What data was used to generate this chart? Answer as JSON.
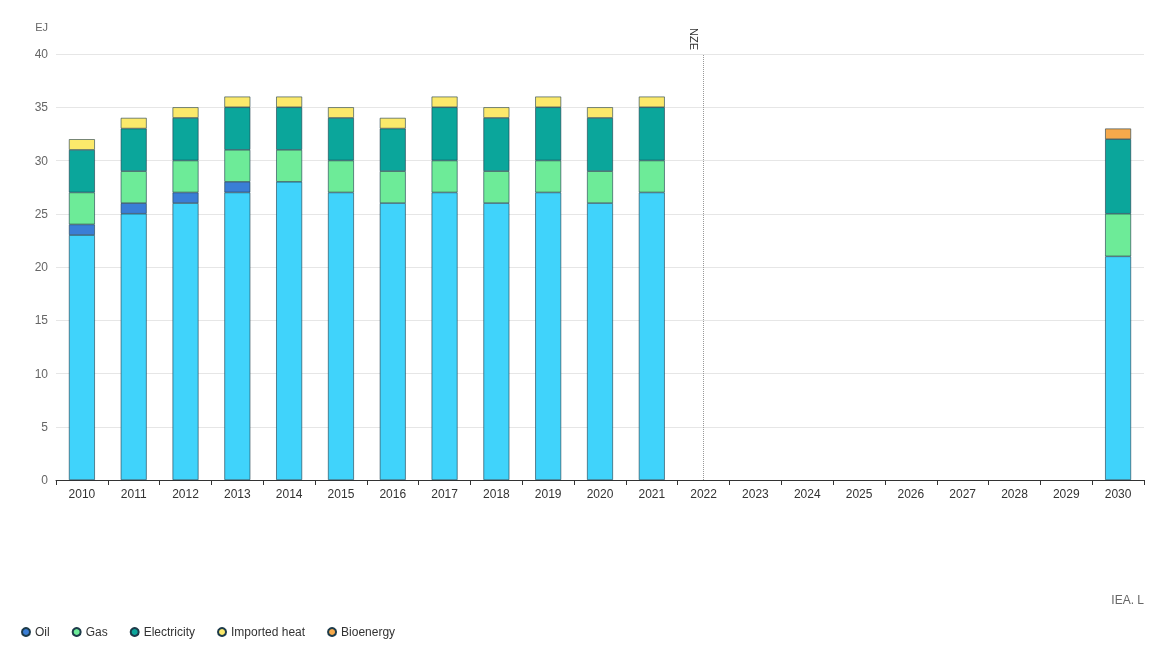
{
  "chart_data": {
    "type": "bar",
    "stacked": true,
    "ylabel": "EJ",
    "categories": [
      "2010",
      "2011",
      "2012",
      "2013",
      "2014",
      "2015",
      "2016",
      "2017",
      "2018",
      "2019",
      "2020",
      "2021",
      "2022",
      "2023",
      "2024",
      "2025",
      "2026",
      "2027",
      "2028",
      "2029",
      "2030"
    ],
    "series": [
      {
        "color": "#40d3fb",
        "values": [
          23,
          25,
          26,
          27,
          28,
          27,
          26,
          27,
          26,
          27,
          26,
          27,
          null,
          null,
          null,
          null,
          null,
          null,
          null,
          null,
          21
        ]
      },
      {
        "name": "Oil",
        "color": "#3a7ed6",
        "values": [
          1,
          1,
          1,
          1,
          null,
          null,
          null,
          null,
          null,
          null,
          null,
          null,
          null,
          null,
          null,
          null,
          null,
          null,
          null,
          null,
          null
        ]
      },
      {
        "name": "Gas",
        "color": "#6deb98",
        "values": [
          3,
          3,
          3,
          3,
          3,
          3,
          3,
          3,
          3,
          3,
          3,
          3,
          null,
          null,
          null,
          null,
          null,
          null,
          null,
          null,
          4
        ]
      },
      {
        "name": "Electricity",
        "color": "#0ba69b",
        "values": [
          4,
          4,
          4,
          4,
          4,
          4,
          4,
          5,
          5,
          5,
          5,
          5,
          null,
          null,
          null,
          null,
          null,
          null,
          null,
          null,
          7
        ]
      },
      {
        "name": "Imported heat",
        "color": "#fbe96b",
        "values": [
          1,
          1,
          1,
          1,
          1,
          1,
          1,
          1,
          1,
          1,
          1,
          1,
          null,
          null,
          null,
          null,
          null,
          null,
          null,
          null,
          null
        ]
      },
      {
        "name": "Bioenergy",
        "color": "#f6a94b",
        "values": [
          null,
          null,
          null,
          null,
          null,
          null,
          null,
          null,
          null,
          null,
          null,
          null,
          null,
          null,
          null,
          null,
          null,
          null,
          null,
          null,
          1
        ]
      }
    ],
    "ylim": [
      0,
      40
    ],
    "yticks": [
      0,
      5,
      10,
      15,
      20,
      25,
      30,
      35,
      40
    ],
    "grid": "y",
    "legend": "bottom left",
    "ref_lines": [
      {
        "axis": "x",
        "value": "2022",
        "label": "NZE",
        "line_style": "dotted"
      }
    ],
    "annotations": [
      "IEA. L"
    ]
  }
}
